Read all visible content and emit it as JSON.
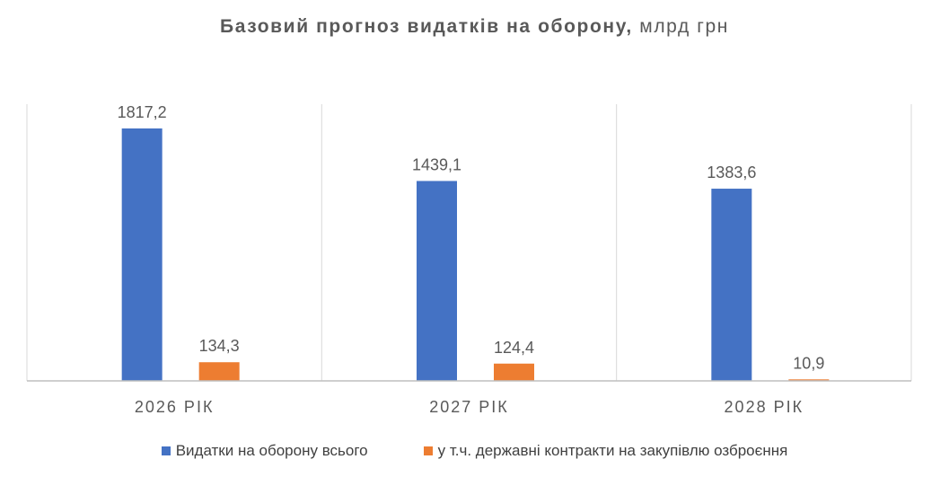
{
  "title": {
    "main": "Базовий прогноз видатків на оборону,",
    "unit": "млрд грн"
  },
  "colors": {
    "series_1": "#4472C4",
    "series_2": "#ED7D31",
    "label_text": "#595959",
    "grid": "#d9d9d9",
    "axis": "#bfbfbf"
  },
  "chart_data": {
    "type": "bar",
    "categories": [
      "2026 РІК",
      "2027 РІК",
      "2028 РІК"
    ],
    "series": [
      {
        "name": "Видатки на оборону всього",
        "values": [
          1817.2,
          1439.1,
          1383.6
        ],
        "labels": [
          "1817,2",
          "1439,1",
          "1383,6"
        ]
      },
      {
        "name": "у т.ч. державні контракти на закупівлю озброєння",
        "values": [
          134.3,
          124.4,
          10.9
        ],
        "labels": [
          "134,3",
          "124,4",
          "10,9"
        ]
      }
    ],
    "title": "Базовий прогноз видатків на оборону, млрд грн",
    "xlabel": "",
    "ylabel": "",
    "ylim": [
      0,
      1817.2
    ],
    "grid": "vertical category separators",
    "legend_position": "bottom"
  }
}
